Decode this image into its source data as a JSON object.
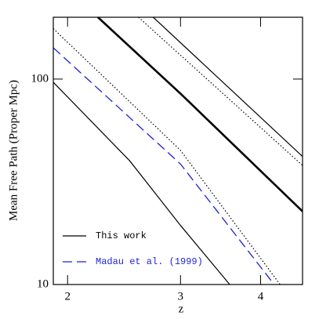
{
  "chart_data": {
    "type": "line",
    "x_label": "z",
    "y_label": "Mean Free Path (Proper Mpc)",
    "xlog": true,
    "ylog": true,
    "xlim": [
      1.9,
      4.65
    ],
    "ylim": [
      10,
      200
    ],
    "xticks": [
      2,
      3,
      4
    ],
    "yticks": [
      10,
      100
    ],
    "legend": "lower-left",
    "series": [
      {
        "name": "This work",
        "color": "#000000",
        "width": 2.6,
        "dash": "solid",
        "x": [
          2.23,
          3,
          4.65
        ],
        "values": [
          200,
          85,
          22.7
        ]
      },
      {
        "color": "#000000",
        "width": 1.2,
        "dash": "solid",
        "x": [
          2.72,
          4.65
        ],
        "values": [
          200,
          42
        ]
      },
      {
        "color": "#000000",
        "width": 1.2,
        "dash": "dotted",
        "x": [
          2.58,
          4.65
        ],
        "values": [
          200,
          38
        ]
      },
      {
        "color": "#000000",
        "width": 1.2,
        "dash": "dotted",
        "x": [
          1.9,
          3,
          4.29
        ],
        "values": [
          176,
          45,
          10
        ]
      },
      {
        "name": "Madau et al. (1999)",
        "color": "#1f1fd6",
        "width": 1.3,
        "dash": "dashed",
        "x": [
          1.9,
          3,
          4.2
        ],
        "values": [
          142,
          38.6,
          10
        ]
      },
      {
        "color": "#000000",
        "width": 1.2,
        "dash": "solid",
        "x": [
          1.9,
          2.5,
          3,
          3.58
        ],
        "values": [
          96.5,
          40,
          19.4,
          10
        ]
      }
    ]
  }
}
